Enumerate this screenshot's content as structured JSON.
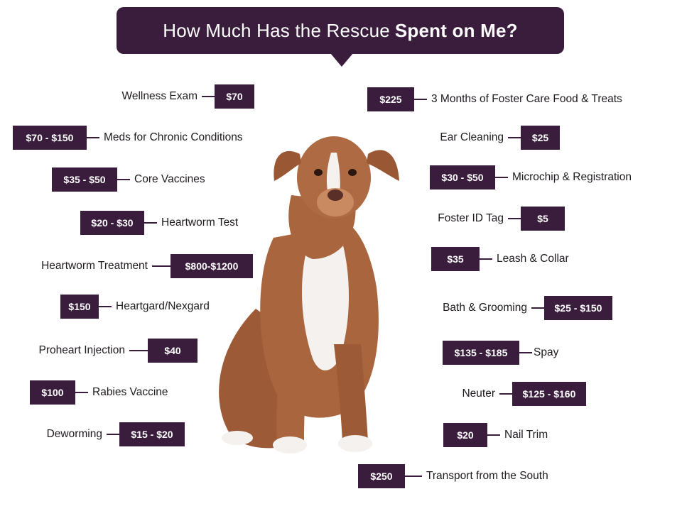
{
  "title": {
    "regular": "How Much Has the Rescue",
    "bold": "Spent on Me?"
  },
  "left_items": [
    {
      "label": "Wellness Exam",
      "price": "$70"
    },
    {
      "label": "Meds for Chronic Conditions",
      "price": "$70 - $150"
    },
    {
      "label": "Core Vaccines",
      "price": "$35 - $50"
    },
    {
      "label": "Heartworm Test",
      "price": "$20 - $30"
    },
    {
      "label": "Heartworm Treatment",
      "price": "$800-$1200"
    },
    {
      "label": "Heartgard/Nexgard",
      "price": "$150"
    },
    {
      "label": "Proheart Injection",
      "price": "$40"
    },
    {
      "label": "Rabies Vaccine",
      "price": "$100"
    },
    {
      "label": "Deworming",
      "price": "$15 - $20"
    }
  ],
  "right_items": [
    {
      "label": "3 Months of Foster Care Food & Treats",
      "price": "$225"
    },
    {
      "label": "Ear Cleaning",
      "price": "$25"
    },
    {
      "label": "Microchip & Registration",
      "price": "$30 - $50"
    },
    {
      "label": "Foster ID Tag",
      "price": "$5"
    },
    {
      "label": "Leash & Collar",
      "price": "$35"
    },
    {
      "label": "Bath & Grooming",
      "price": "$25 - $150"
    },
    {
      "label": "Spay",
      "price": "$135 - $185"
    },
    {
      "label": "Neuter",
      "price": "$125 - $160"
    },
    {
      "label": "Nail Trim",
      "price": "$20"
    },
    {
      "label": "Transport from the South",
      "price": "$250"
    }
  ],
  "colors": {
    "accent": "#3a1c3d",
    "dog_coat": "#a8653e",
    "dog_white": "#f4f1ee"
  },
  "icons": {
    "dog": "dog-illustration"
  }
}
